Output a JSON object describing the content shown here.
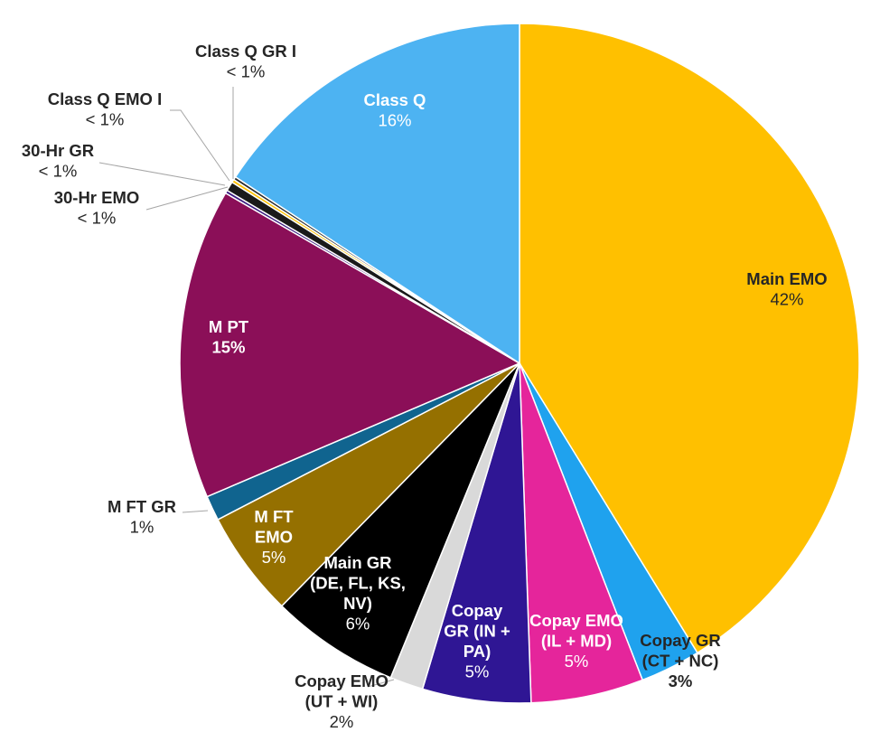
{
  "chart_data": {
    "type": "pie",
    "start_angle_deg": 0,
    "direction": "clockwise",
    "slices": [
      {
        "label": "Main EMO",
        "pct_label": "42%",
        "value": 41.6,
        "color": "#FFC000"
      },
      {
        "label": "Copay GR (CT + NC)",
        "pct_label": "3%",
        "value": 2.9,
        "color": "#1FA2EE"
      },
      {
        "label": "Copay EMO (IL + MD)",
        "pct_label": "5%",
        "value": 5.4,
        "color": "#E5259B"
      },
      {
        "label": "Copay GR (IN + PA)",
        "pct_label": "5%",
        "value": 5.2,
        "color": "#2F1694"
      },
      {
        "label": "Copay EMO (UT + WI)",
        "pct_label": "2%",
        "value": 1.6,
        "color": "#D9D9D9"
      },
      {
        "label": "Main GR (DE, FL, KS, NV)",
        "pct_label": "6%",
        "value": 6.2,
        "color": "#000000"
      },
      {
        "label": "M FT EMO",
        "pct_label": "5%",
        "value": 5.1,
        "color": "#957000"
      },
      {
        "label": "M FT GR",
        "pct_label": "1%",
        "value": 1.2,
        "color": "#10648F"
      },
      {
        "label": "M PT",
        "pct_label": "15%",
        "value": 14.9,
        "color": "#8B0F58"
      },
      {
        "label": "30-Hr EMO",
        "pct_label": "< 1%",
        "value": 0.15,
        "color": "#3A1A80"
      },
      {
        "label": "30-Hr GR",
        "pct_label": "< 1%",
        "value": 0.45,
        "color": "#1A1A1A"
      },
      {
        "label": "Class Q EMO I",
        "pct_label": "< 1%",
        "value": 0.15,
        "color": "#FFC000"
      },
      {
        "label": "Class Q GR I",
        "pct_label": "< 1%",
        "value": 0.15,
        "color": "#2B2B2B"
      },
      {
        "label": "Class Q",
        "pct_label": "16%",
        "value": 15.9,
        "color": "#4DB3F2"
      }
    ]
  }
}
